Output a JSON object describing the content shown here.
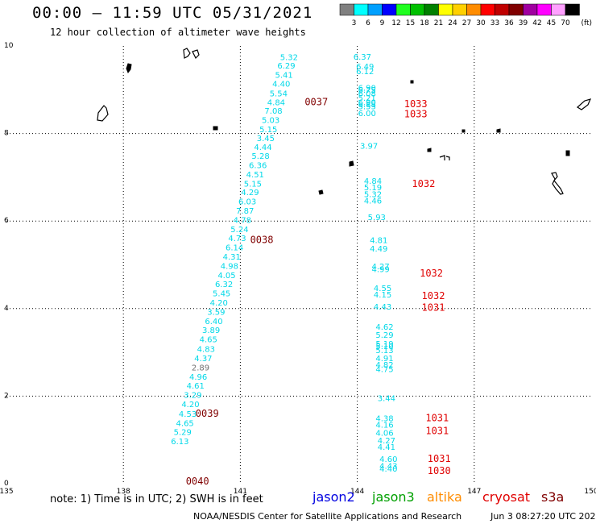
{
  "header": {
    "title": "00:00 — 11:59 UTC 05/31/2021",
    "subtitle": "12 hour collection of altimeter wave heights"
  },
  "colorbar": {
    "unit_label": "(ft)",
    "bins": [
      {
        "label": "3",
        "color": "#808080"
      },
      {
        "label": "6",
        "color": "#00ffff"
      },
      {
        "label": "9",
        "color": "#00a0ff"
      },
      {
        "label": "12",
        "color": "#0000ff"
      },
      {
        "label": "15",
        "color": "#20ff20"
      },
      {
        "label": "18",
        "color": "#00c000"
      },
      {
        "label": "21",
        "color": "#008000"
      },
      {
        "label": "24",
        "color": "#ffff00"
      },
      {
        "label": "27",
        "color": "#ffd000"
      },
      {
        "label": "30",
        "color": "#ff8c00"
      },
      {
        "label": "33",
        "color": "#ff0000"
      },
      {
        "label": "36",
        "color": "#c00000"
      },
      {
        "label": "39",
        "color": "#800000"
      },
      {
        "label": "42",
        "color": "#a000a0"
      },
      {
        "label": "45",
        "color": "#ff00ff"
      },
      {
        "label": "70",
        "color": "#ffa0ff"
      },
      {
        "label": "",
        "color": "#000000"
      }
    ]
  },
  "axes": {
    "lon_ticks": [
      "135",
      "138",
      "141",
      "144",
      "147",
      "150"
    ],
    "lat_ticks": [
      "0",
      "2",
      "4",
      "6",
      "8",
      "10"
    ],
    "lon_range": [
      135,
      150
    ],
    "lat_range": [
      0,
      10
    ]
  },
  "colors": {
    "swh_text": "#00d8e8",
    "gray_text": "#707070",
    "time_s3a": "#800000",
    "time_cryosat": "#e00000",
    "grid": "#000000",
    "land": "#000000"
  },
  "track_a": {
    "satellite": "sentinel-3a",
    "points": [
      {
        "lon": 142.25,
        "lat": 9.68,
        "swh": "5.32"
      },
      {
        "lon": 142.18,
        "lat": 9.48,
        "swh": "6.29"
      },
      {
        "lon": 142.12,
        "lat": 9.27,
        "swh": "5.41"
      },
      {
        "lon": 142.05,
        "lat": 9.07,
        "swh": "4.40"
      },
      {
        "lon": 141.98,
        "lat": 8.85,
        "swh": "5.54"
      },
      {
        "lon": 141.92,
        "lat": 8.65,
        "swh": "4.84"
      },
      {
        "lon": 141.85,
        "lat": 8.45,
        "swh": "7.08"
      },
      {
        "lon": 141.78,
        "lat": 8.24,
        "swh": "5.03"
      },
      {
        "lon": 141.72,
        "lat": 8.03,
        "swh": "5.15"
      },
      {
        "lon": 141.65,
        "lat": 7.83,
        "swh": "3.45"
      },
      {
        "lon": 141.58,
        "lat": 7.62,
        "swh": "4.44"
      },
      {
        "lon": 141.52,
        "lat": 7.42,
        "swh": "5.28"
      },
      {
        "lon": 141.45,
        "lat": 7.21,
        "swh": "6.36"
      },
      {
        "lon": 141.38,
        "lat": 7.0,
        "swh": "4.51"
      },
      {
        "lon": 141.32,
        "lat": 6.79,
        "swh": "5.15"
      },
      {
        "lon": 141.25,
        "lat": 6.59,
        "swh": "4.29"
      },
      {
        "lon": 141.18,
        "lat": 6.38,
        "swh": "6.03"
      },
      {
        "lon": 141.12,
        "lat": 6.17,
        "swh": "7.87"
      },
      {
        "lon": 141.05,
        "lat": 5.96,
        "swh": "4.78"
      },
      {
        "lon": 140.98,
        "lat": 5.75,
        "swh": "5.24"
      },
      {
        "lon": 140.92,
        "lat": 5.54,
        "swh": "4.73"
      },
      {
        "lon": 140.85,
        "lat": 5.33,
        "swh": "6.14"
      },
      {
        "lon": 140.78,
        "lat": 5.12,
        "swh": "4.31"
      },
      {
        "lon": 140.72,
        "lat": 4.91,
        "swh": "4.98"
      },
      {
        "lon": 140.65,
        "lat": 4.7,
        "swh": "4.05"
      },
      {
        "lon": 140.58,
        "lat": 4.49,
        "swh": "6.32"
      },
      {
        "lon": 140.52,
        "lat": 4.28,
        "swh": "5.45"
      },
      {
        "lon": 140.45,
        "lat": 4.07,
        "swh": "4.20"
      },
      {
        "lon": 140.38,
        "lat": 3.86,
        "swh": "3.59"
      },
      {
        "lon": 140.32,
        "lat": 3.65,
        "swh": "6.40"
      },
      {
        "lon": 140.25,
        "lat": 3.44,
        "swh": "3.89"
      },
      {
        "lon": 140.18,
        "lat": 3.23,
        "swh": "4.65"
      },
      {
        "lon": 140.12,
        "lat": 3.01,
        "swh": "4.83"
      },
      {
        "lon": 140.05,
        "lat": 2.8,
        "swh": "4.37"
      },
      {
        "lon": 139.98,
        "lat": 2.59,
        "swh": "2.89",
        "gray": true
      },
      {
        "lon": 139.92,
        "lat": 2.38,
        "swh": "4.96"
      },
      {
        "lon": 139.85,
        "lat": 2.17,
        "swh": "4.61"
      },
      {
        "lon": 139.78,
        "lat": 1.96,
        "swh": "3.29"
      },
      {
        "lon": 139.72,
        "lat": 1.75,
        "swh": "4.20"
      },
      {
        "lon": 139.65,
        "lat": 1.53,
        "swh": "4.53"
      },
      {
        "lon": 139.58,
        "lat": 1.32,
        "swh": "4.65"
      },
      {
        "lon": 139.52,
        "lat": 1.11,
        "swh": "5.29"
      },
      {
        "lon": 139.45,
        "lat": 0.9,
        "swh": "6.13"
      }
    ]
  },
  "track_b": {
    "satellite": "cryosat",
    "points": [
      {
        "lon": 144.13,
        "lat": 9.69,
        "swh": "6.37"
      },
      {
        "lon": 144.2,
        "lat": 9.47,
        "swh": "6.49"
      },
      {
        "lon": 144.2,
        "lat": 9.36,
        "swh": "6.12"
      },
      {
        "lon": 144.25,
        "lat": 8.98,
        "swh": "6.90"
      },
      {
        "lon": 144.25,
        "lat": 8.93,
        "swh": "6.75"
      },
      {
        "lon": 144.25,
        "lat": 8.85,
        "swh": "6.08"
      },
      {
        "lon": 144.25,
        "lat": 8.75,
        "swh": "5.21"
      },
      {
        "lon": 144.25,
        "lat": 8.65,
        "swh": "6.90"
      },
      {
        "lon": 144.25,
        "lat": 8.6,
        "swh": "6.88"
      },
      {
        "lon": 144.25,
        "lat": 8.55,
        "swh": "5.53"
      },
      {
        "lon": 144.25,
        "lat": 8.4,
        "swh": "6.00"
      },
      {
        "lon": 144.3,
        "lat": 7.65,
        "swh": "3.97"
      },
      {
        "lon": 144.4,
        "lat": 6.85,
        "swh": "4.84"
      },
      {
        "lon": 144.4,
        "lat": 6.7,
        "swh": "5.19"
      },
      {
        "lon": 144.4,
        "lat": 6.55,
        "swh": "5.32"
      },
      {
        "lon": 144.4,
        "lat": 6.4,
        "swh": "4.46"
      },
      {
        "lon": 144.5,
        "lat": 6.02,
        "swh": "5.93"
      },
      {
        "lon": 144.55,
        "lat": 5.5,
        "swh": "4.81"
      },
      {
        "lon": 144.55,
        "lat": 5.3,
        "swh": "4.49"
      },
      {
        "lon": 144.6,
        "lat": 4.9,
        "swh": "4.27"
      },
      {
        "lon": 144.6,
        "lat": 4.83,
        "swh": "4.99"
      },
      {
        "lon": 144.65,
        "lat": 4.4,
        "swh": "4.55"
      },
      {
        "lon": 144.65,
        "lat": 4.25,
        "swh": "4.15"
      },
      {
        "lon": 144.65,
        "lat": 3.98,
        "swh": "4.43"
      },
      {
        "lon": 144.7,
        "lat": 3.52,
        "swh": "4.62"
      },
      {
        "lon": 144.7,
        "lat": 3.33,
        "swh": "5.29"
      },
      {
        "lon": 144.7,
        "lat": 3.13,
        "swh": "5.19"
      },
      {
        "lon": 144.7,
        "lat": 3.08,
        "swh": "5.10"
      },
      {
        "lon": 144.7,
        "lat": 2.98,
        "swh": "5.13"
      },
      {
        "lon": 144.7,
        "lat": 2.8,
        "swh": "4.91"
      },
      {
        "lon": 144.7,
        "lat": 2.65,
        "swh": "4.82"
      },
      {
        "lon": 144.7,
        "lat": 2.55,
        "swh": "4.75"
      },
      {
        "lon": 144.75,
        "lat": 1.89,
        "swh": "3.44"
      },
      {
        "lon": 144.7,
        "lat": 1.43,
        "swh": "4.38"
      },
      {
        "lon": 144.7,
        "lat": 1.28,
        "swh": "4.16"
      },
      {
        "lon": 144.7,
        "lat": 1.1,
        "swh": "4.06"
      },
      {
        "lon": 144.75,
        "lat": 0.92,
        "swh": "4.27"
      },
      {
        "lon": 144.75,
        "lat": 0.77,
        "swh": "4.41"
      },
      {
        "lon": 144.8,
        "lat": 0.5,
        "swh": "4.60"
      },
      {
        "lon": 144.8,
        "lat": 0.34,
        "swh": "4.43"
      },
      {
        "lon": 144.8,
        "lat": 0.28,
        "swh": "4.40"
      }
    ]
  },
  "time_labels": [
    {
      "text": "0037",
      "lon": 142.95,
      "lat": 8.65,
      "satellite": "s3a"
    },
    {
      "text": "0038",
      "lon": 141.55,
      "lat": 5.5,
      "satellite": "s3a"
    },
    {
      "text": "0039",
      "lon": 140.15,
      "lat": 1.53,
      "satellite": "s3a"
    },
    {
      "text": "0040",
      "lon": 139.9,
      "lat": -0.02,
      "satellite": "s3a"
    },
    {
      "text": "1033",
      "lon": 145.5,
      "lat": 8.6,
      "satellite": "cryosat"
    },
    {
      "text": "1033",
      "lon": 145.5,
      "lat": 8.37,
      "satellite": "cryosat"
    },
    {
      "text": "1032",
      "lon": 145.7,
      "lat": 6.78,
      "satellite": "cryosat"
    },
    {
      "text": "1032",
      "lon": 145.9,
      "lat": 4.73,
      "satellite": "cryosat"
    },
    {
      "text": "1032",
      "lon": 145.95,
      "lat": 4.22,
      "satellite": "cryosat"
    },
    {
      "text": "1031",
      "lon": 145.95,
      "lat": 3.95,
      "satellite": "cryosat"
    },
    {
      "text": "1031",
      "lon": 146.05,
      "lat": 1.43,
      "satellite": "cryosat"
    },
    {
      "text": "1031",
      "lon": 146.05,
      "lat": 1.13,
      "satellite": "cryosat"
    },
    {
      "text": "1031",
      "lon": 146.1,
      "lat": 0.5,
      "satellite": "cryosat"
    },
    {
      "text": "1030",
      "lon": 146.1,
      "lat": 0.22,
      "satellite": "cryosat"
    }
  ],
  "legend": {
    "note": "note:  1) Time is in UTC;  2) SWH is in feet",
    "satellites": [
      {
        "label": "jason2",
        "color": "#0000e0"
      },
      {
        "label": "jason3",
        "color": "#00a000"
      },
      {
        "label": "altika",
        "color": "#ff8c00"
      },
      {
        "label": "cryosat",
        "color": "#e00000"
      },
      {
        "label": "s3a",
        "color": "#800000"
      }
    ]
  },
  "footer": {
    "credit": "NOAA/NESDIS Center for Satellite Applications and Research",
    "timestamp": "Jun  3 08:27:20 UTC 2021"
  }
}
